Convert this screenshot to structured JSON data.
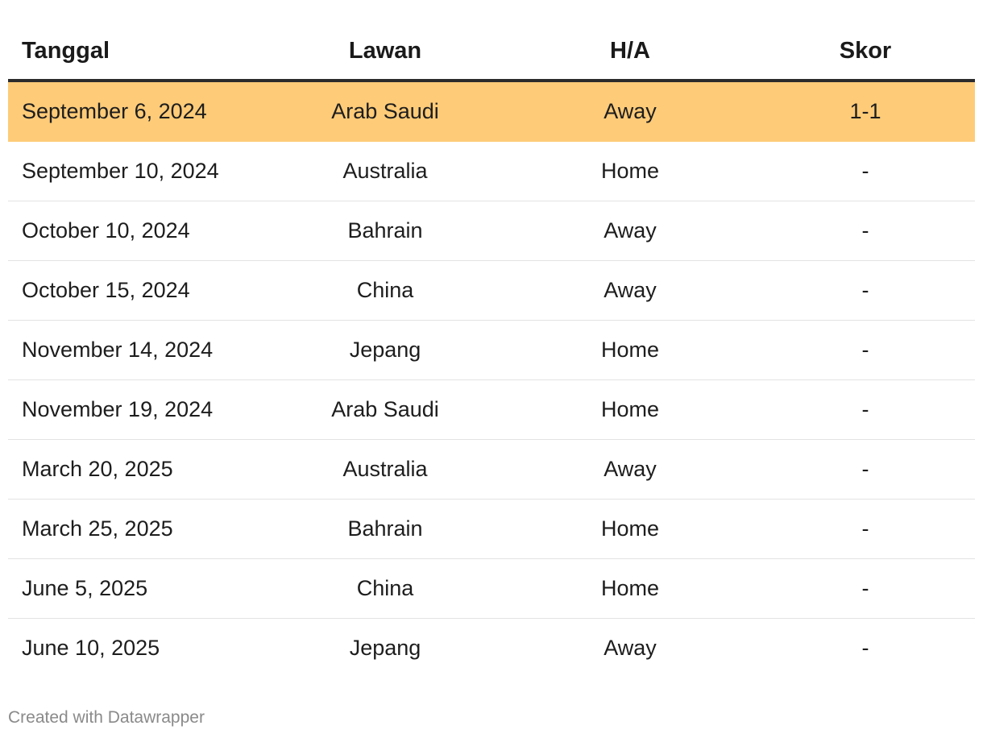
{
  "chart_data": {
    "type": "table",
    "columns": [
      "Tanggal",
      "Lawan",
      "H/A",
      "Skor"
    ],
    "rows": [
      {
        "tanggal": "September 6, 2024",
        "lawan": "Arab Saudi",
        "ha": "Away",
        "skor": "1-1",
        "highlight": true
      },
      {
        "tanggal": "September 10, 2024",
        "lawan": "Australia",
        "ha": "Home",
        "skor": "-",
        "highlight": false
      },
      {
        "tanggal": "October 10, 2024",
        "lawan": "Bahrain",
        "ha": "Away",
        "skor": "-",
        "highlight": false
      },
      {
        "tanggal": "October 15, 2024",
        "lawan": "China",
        "ha": "Away",
        "skor": "-",
        "highlight": false
      },
      {
        "tanggal": "November 14, 2024",
        "lawan": "Jepang",
        "ha": "Home",
        "skor": "-",
        "highlight": false
      },
      {
        "tanggal": "November 19, 2024",
        "lawan": "Arab Saudi",
        "ha": "Home",
        "skor": "-",
        "highlight": false
      },
      {
        "tanggal": "March 20, 2025",
        "lawan": "Australia",
        "ha": "Away",
        "skor": "-",
        "highlight": false
      },
      {
        "tanggal": "March 25, 2025",
        "lawan": "Bahrain",
        "ha": "Home",
        "skor": "-",
        "highlight": false
      },
      {
        "tanggal": "June 5, 2025",
        "lawan": "China",
        "ha": "Home",
        "skor": "-",
        "highlight": false
      },
      {
        "tanggal": "June 10, 2025",
        "lawan": "Jepang",
        "ha": "Away",
        "skor": "-",
        "highlight": false
      }
    ],
    "highlight_color": "#fecb78"
  },
  "footer": {
    "credit": "Created with Datawrapper"
  }
}
